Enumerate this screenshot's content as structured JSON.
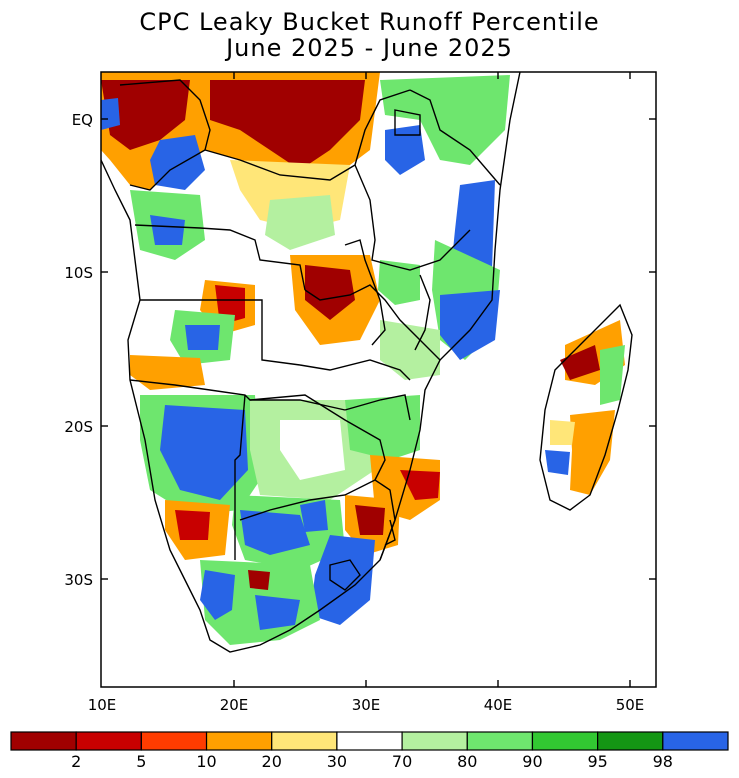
{
  "title_line1": "CPC Leaky Bucket Runoff Percentile",
  "title_line2": "June 2025 - June 2025",
  "axes": {
    "x_ticks": [
      "10E",
      "20E",
      "30E",
      "40E",
      "50E"
    ],
    "y_ticks": [
      "EQ",
      "10S",
      "20S",
      "30S"
    ]
  },
  "colorbar": {
    "labels": [
      "2",
      "5",
      "10",
      "20",
      "30",
      "70",
      "80",
      "90",
      "95",
      "98"
    ],
    "colors": [
      "#a00000",
      "#c80000",
      "#ff3c00",
      "#ffa000",
      "#ffe678",
      "#ffffff",
      "#b4f0a0",
      "#6ee66e",
      "#32c832",
      "#149614",
      "#2864e6"
    ]
  }
}
